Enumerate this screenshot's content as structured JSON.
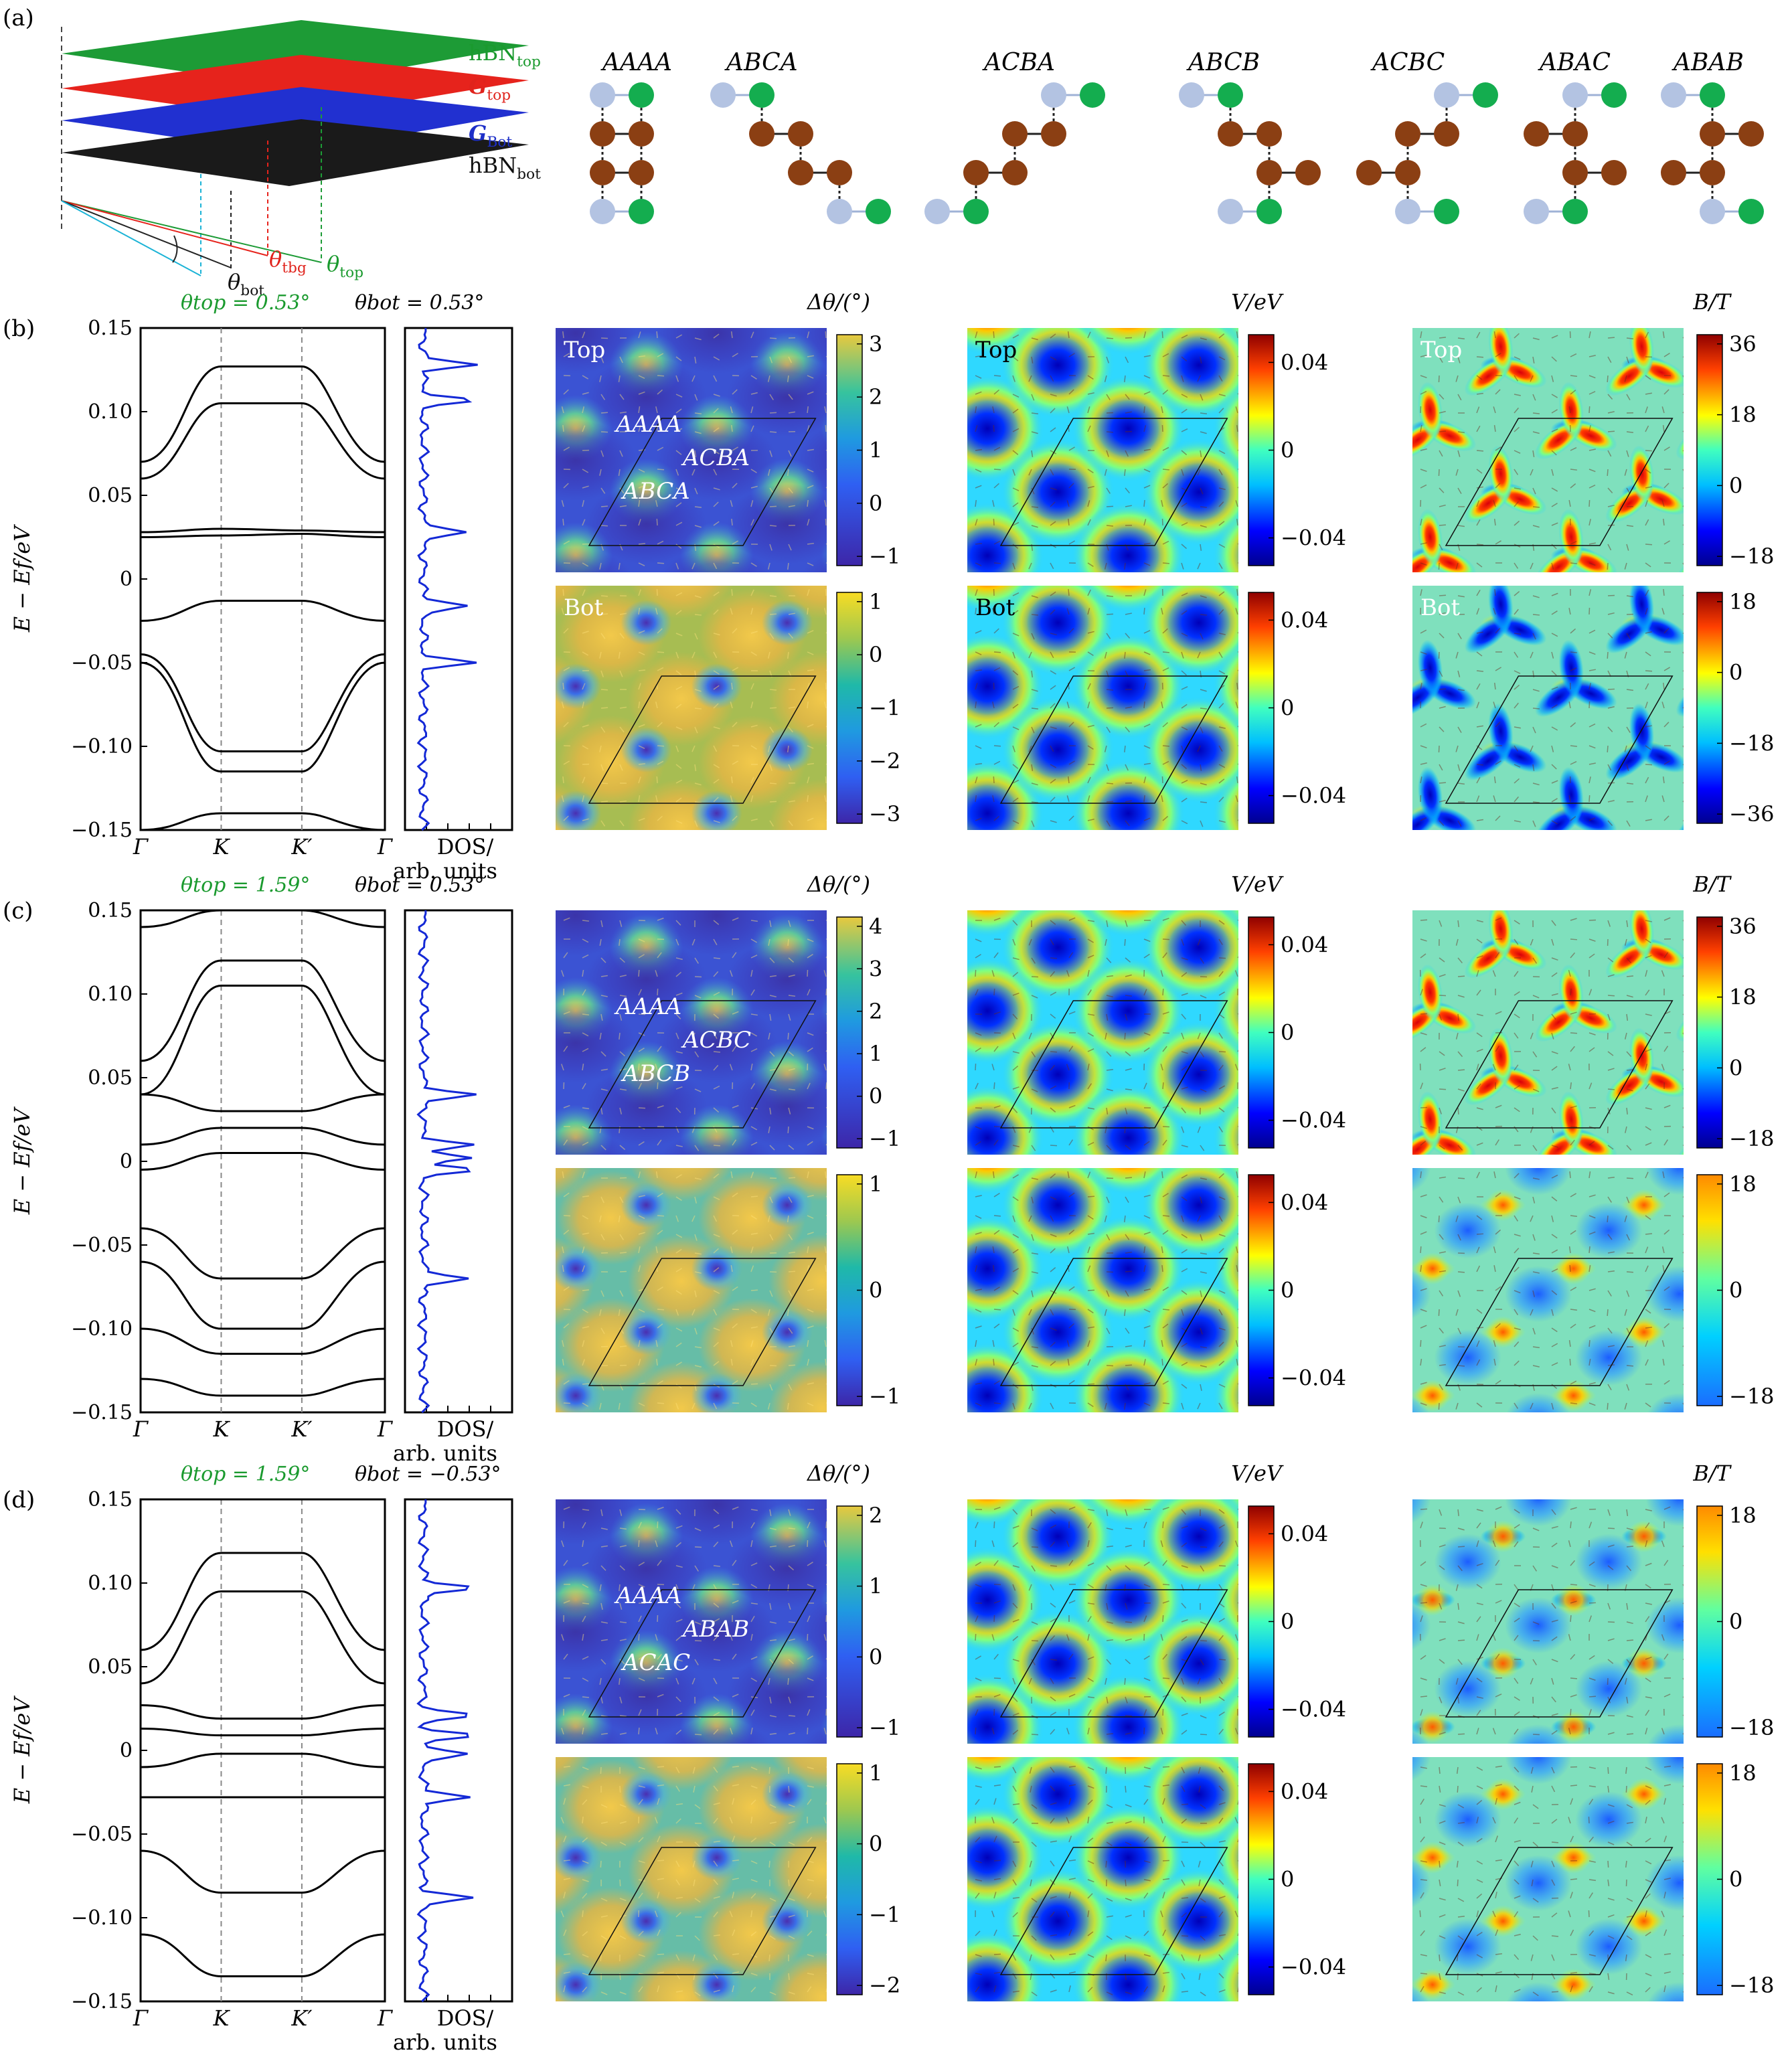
{
  "panel_labels": [
    "(a)",
    "(b)",
    "(c)",
    "(d)"
  ],
  "panel_a": {
    "layer_labels": [
      {
        "text": "hBN",
        "sub": "top",
        "color": "#1a9a2e"
      },
      {
        "text": "G",
        "sub": "top",
        "color": "#e0231c"
      },
      {
        "text": "G",
        "sub": "Bot",
        "color": "#1d2fc8"
      },
      {
        "text": "hBN",
        "sub": "bot",
        "color": "#111111"
      }
    ],
    "angle_labels": [
      {
        "text": "θ",
        "sub": "top",
        "color": "#1a9a2e"
      },
      {
        "text": "θ",
        "sub": "tbg",
        "color": "#e0231c"
      },
      {
        "text": "θ",
        "sub": "bot",
        "color": "#111111"
      }
    ],
    "stackings": [
      "AAAA",
      "ABCA",
      "ACBA",
      "ABCB",
      "ACBC",
      "ABAC",
      "ABAB"
    ],
    "atom_colors": {
      "boron": "#b3c3e2",
      "nitrogen": "#14ad4f",
      "carbon": "#8b3f13"
    }
  },
  "rows": [
    {
      "id": "b",
      "theta_top": "θtop = 0.53°",
      "theta_bot": "θbot = 0.53°",
      "bands": {
        "yticks": [
          "0.15",
          "0.10",
          "0.05",
          "0",
          "−0.05",
          "−0.10",
          "−0.15"
        ],
        "xticks": [
          "Γ",
          "K",
          "K′",
          "Γ"
        ]
      },
      "dos_peaks": [
        0.128,
        0.107,
        0.028,
        -0.016,
        -0.05
      ],
      "twist": {
        "top": {
          "label": "Top",
          "cbar": [
            "3",
            "2",
            "1",
            "0",
            "−1"
          ],
          "stackings": [
            "AAAA",
            "ACBA",
            "ABCA"
          ]
        },
        "bot": {
          "label": "Bot",
          "cbar": [
            "1",
            "0",
            "−1",
            "−2",
            "−3"
          ]
        }
      },
      "potential": {
        "top": {
          "label": "Top",
          "cbar": [
            "0.04",
            "0",
            "−0.04"
          ]
        },
        "bot": {
          "label": "Bot",
          "cbar": [
            "0.04",
            "0",
            "−0.04"
          ]
        }
      },
      "field": {
        "top": {
          "label": "Top",
          "cbar": [
            "36",
            "18",
            "0",
            "−18"
          ]
        },
        "bot": {
          "label": "Bot",
          "cbar": [
            "18",
            "0",
            "−18",
            "−36"
          ]
        }
      }
    },
    {
      "id": "c",
      "theta_top": "θtop = 1.59°",
      "theta_bot": "θbot = 0.53°",
      "bands": {
        "yticks": [
          "0.15",
          "0.10",
          "0.05",
          "0",
          "−0.05",
          "−0.10",
          "−0.15"
        ],
        "xticks": [
          "Γ",
          "K",
          "K′",
          "Γ"
        ]
      },
      "dos_peaks": [
        0.04,
        0.01,
        0.002,
        -0.005,
        -0.07
      ],
      "twist": {
        "top": {
          "label": "",
          "cbar": [
            "4",
            "3",
            "2",
            "1",
            "0",
            "−1"
          ],
          "stackings": [
            "AAAA",
            "ACBC",
            "ABCB"
          ]
        },
        "bot": {
          "label": "",
          "cbar": [
            "1",
            "0",
            "−1"
          ]
        }
      },
      "potential": {
        "top": {
          "label": "",
          "cbar": [
            "0.04",
            "0",
            "−0.04"
          ]
        },
        "bot": {
          "label": "",
          "cbar": [
            "0.04",
            "0",
            "−0.04"
          ]
        }
      },
      "field": {
        "top": {
          "label": "",
          "cbar": [
            "36",
            "18",
            "0",
            "−18"
          ]
        },
        "bot": {
          "label": "",
          "cbar": [
            "18",
            "0",
            "−18"
          ]
        }
      }
    },
    {
      "id": "d",
      "theta_top": "θtop = 1.59°",
      "theta_bot": "θbot = −0.53°",
      "bands": {
        "yticks": [
          "0.15",
          "0.10",
          "0.05",
          "0",
          "−0.05",
          "−0.10",
          "−0.15"
        ],
        "xticks": [
          "Γ",
          "K",
          "K′",
          "Γ"
        ]
      },
      "dos_peaks": [
        0.097,
        0.021,
        0.009,
        -0.002,
        -0.028,
        -0.088
      ],
      "twist": {
        "top": {
          "label": "",
          "cbar": [
            "2",
            "1",
            "0",
            "−1"
          ],
          "stackings": [
            "AAAA",
            "ABAB",
            "ACAC"
          ]
        },
        "bot": {
          "label": "",
          "cbar": [
            "1",
            "0",
            "−1",
            "−2"
          ]
        }
      },
      "potential": {
        "top": {
          "label": "",
          "cbar": [
            "0.04",
            "0",
            "−0.04"
          ]
        },
        "bot": {
          "label": "",
          "cbar": [
            "0.04",
            "0",
            "−0.04"
          ]
        }
      },
      "field": {
        "top": {
          "label": "",
          "cbar": [
            "18",
            "0",
            "−18"
          ]
        },
        "bot": {
          "label": "",
          "cbar": [
            "18",
            "0",
            "−18"
          ]
        }
      }
    }
  ],
  "axis_labels": {
    "band_ylabel": "E − Ef/eV",
    "dos_label_1": "DOS/",
    "dos_label_2": "arb. units",
    "twist_title": "Δθ/(°)",
    "potential_title": "V/eV",
    "field_title": "B/T"
  }
}
